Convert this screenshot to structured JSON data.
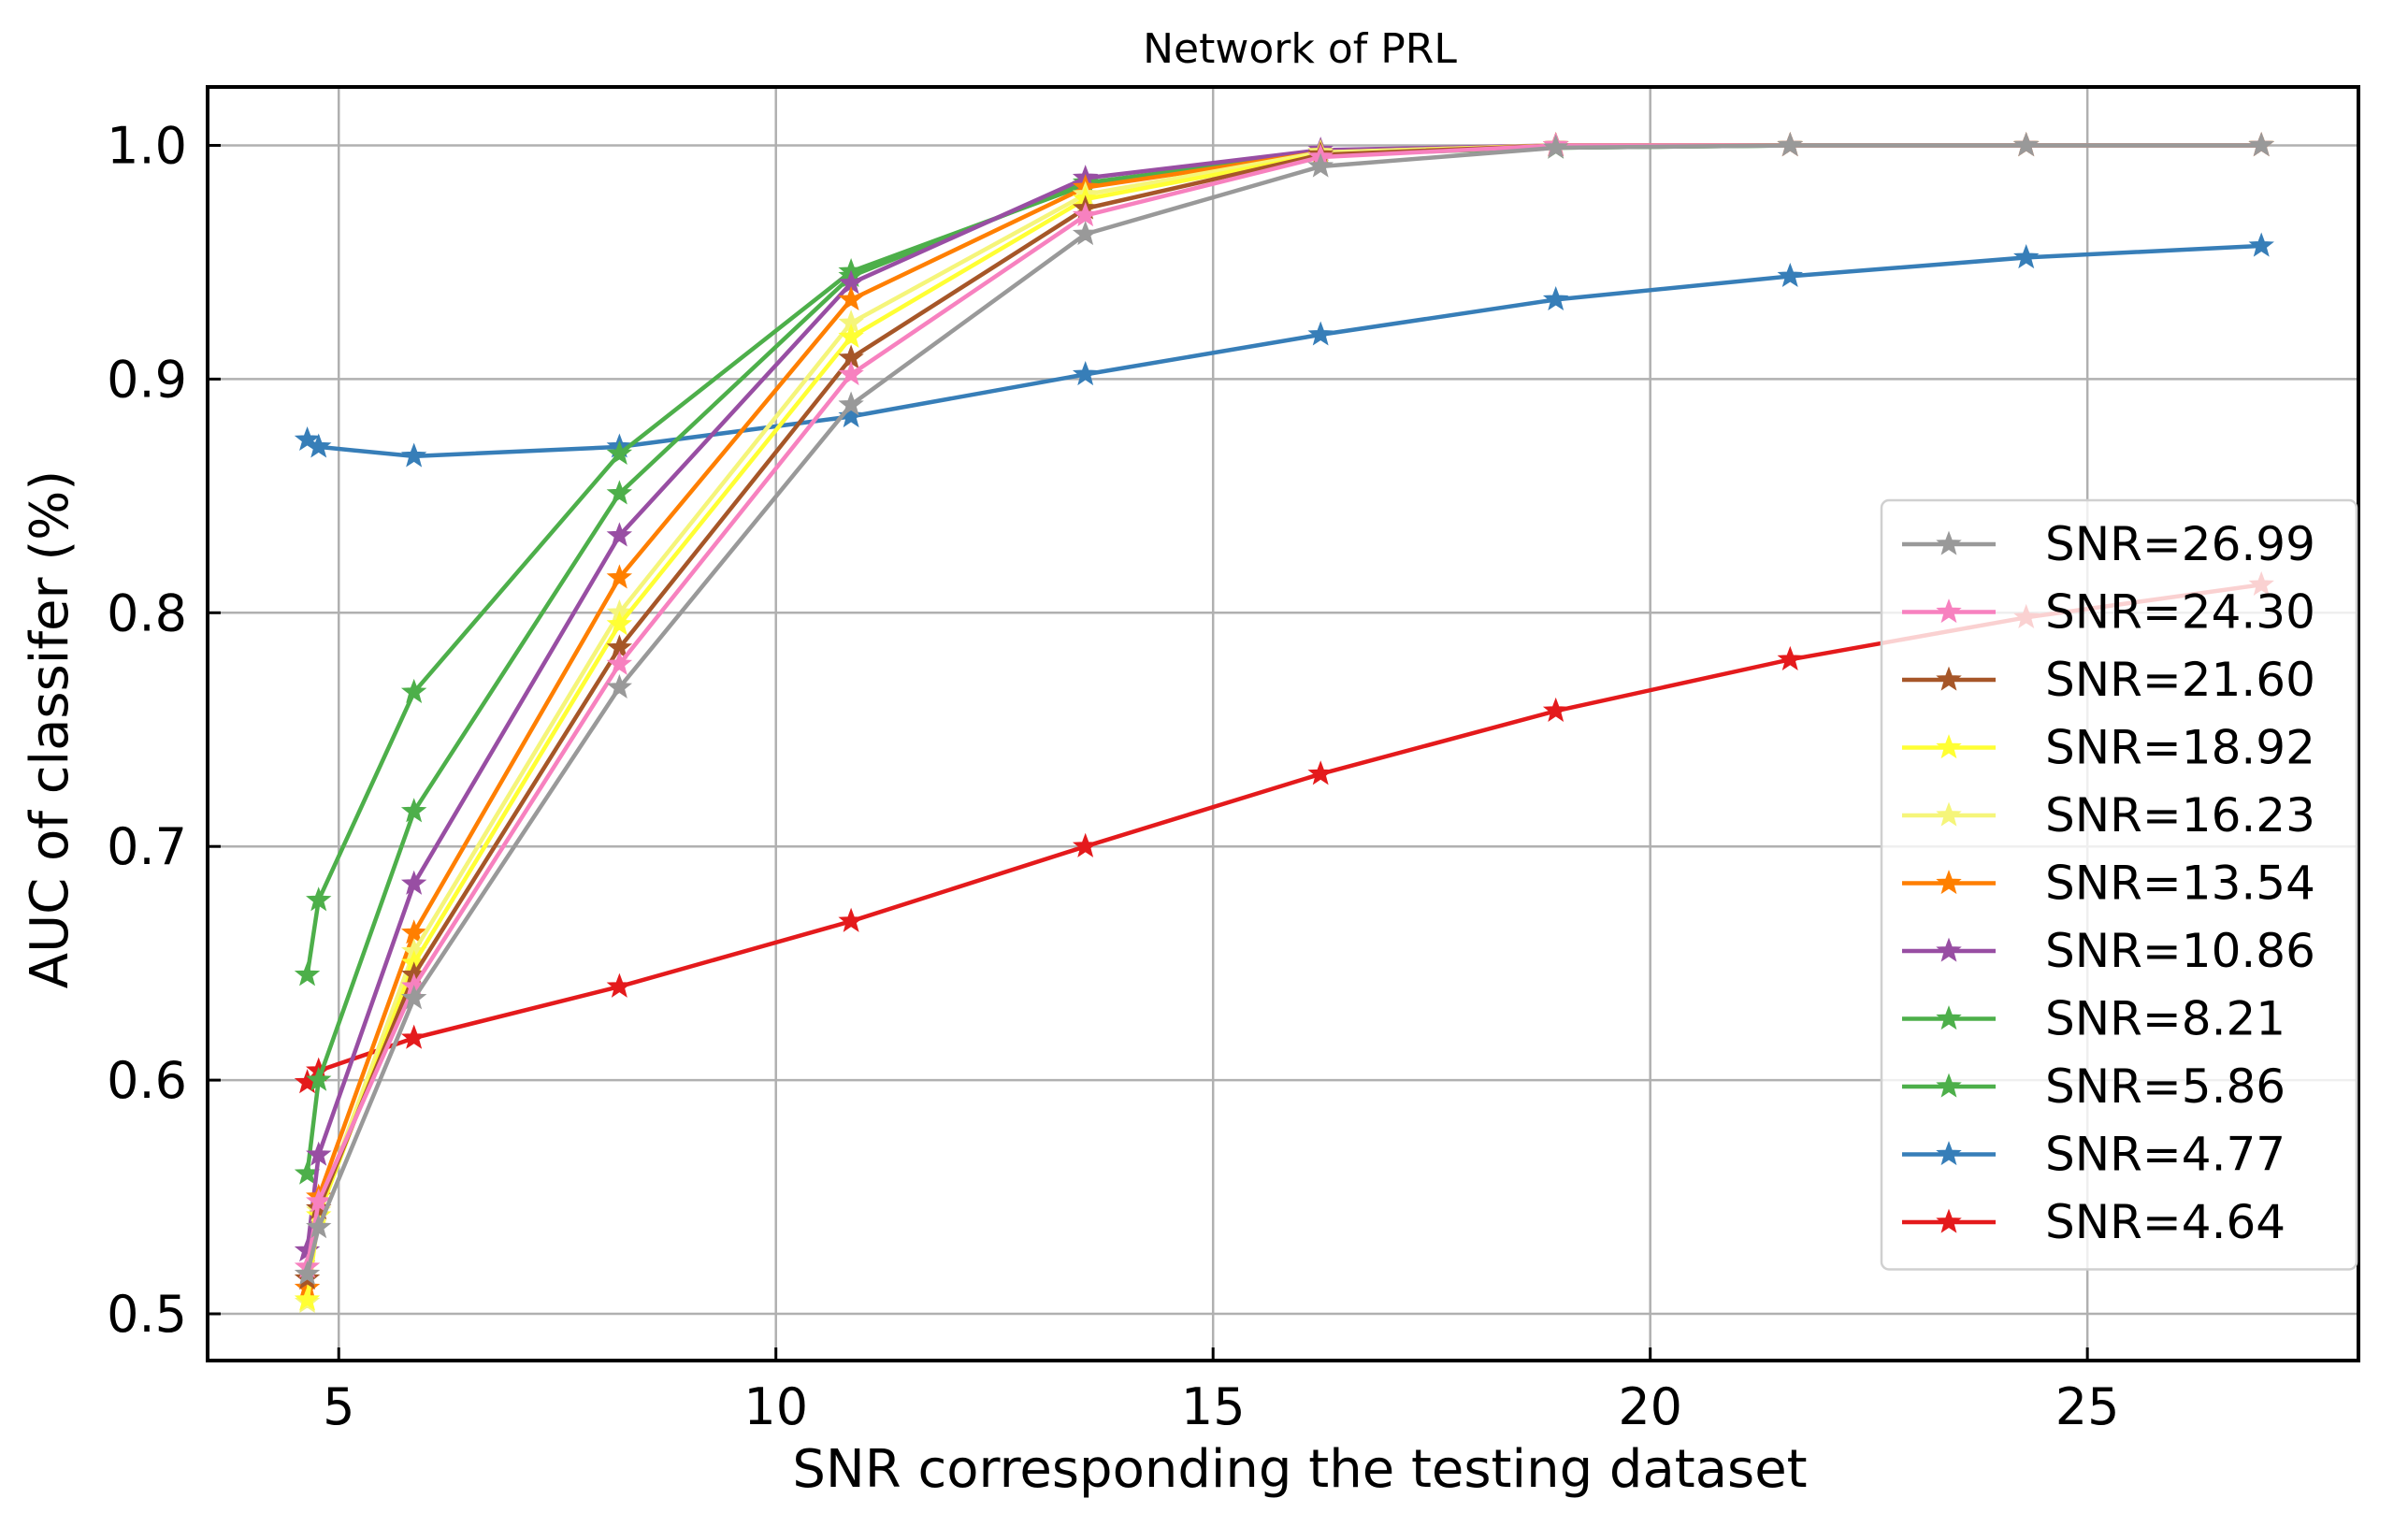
{
  "chart_data": {
    "type": "line",
    "title": "Network of PRL",
    "xlabel": "SNR corresponding the testing dataset",
    "ylabel": "AUC of classifer (%)",
    "xlim": [
      3.5,
      28.1
    ],
    "ylim": [
      0.48,
      1.025
    ],
    "xticks": [
      5,
      10,
      15,
      20,
      25
    ],
    "xtick_labels": [
      "5",
      "10",
      "15",
      "20",
      "25"
    ],
    "yticks": [
      0.5,
      0.6,
      0.7,
      0.8,
      0.9,
      1.0
    ],
    "ytick_labels": [
      "0.5",
      "0.6",
      "0.7",
      "0.8",
      "0.9",
      "1.0"
    ],
    "grid": true,
    "legend_position": "lower-right",
    "marker": "star",
    "x": [
      4.64,
      4.77,
      5.86,
      8.21,
      10.86,
      13.54,
      16.23,
      18.92,
      21.6,
      24.3,
      26.99
    ],
    "series": [
      {
        "name": "SNR=26.99",
        "color": "#999999",
        "values": [
          0.517,
          0.537,
          0.635,
          0.768,
          0.889,
          0.962,
          0.991,
          0.999,
          1.0,
          1.0,
          1.0
        ]
      },
      {
        "name": "SNR=24.30",
        "color": "#f781bf",
        "values": [
          0.52,
          0.548,
          0.64,
          0.778,
          0.902,
          0.97,
          0.995,
          1.0,
          1.0,
          1.0,
          1.0
        ]
      },
      {
        "name": "SNR=21.60",
        "color": "#a65628",
        "values": [
          0.515,
          0.545,
          0.645,
          0.785,
          0.909,
          0.973,
          0.996,
          1.0,
          1.0,
          1.0,
          1.0
        ]
      },
      {
        "name": "SNR=18.92",
        "color": "#ffff33",
        "values": [
          0.506,
          0.542,
          0.65,
          0.795,
          0.918,
          0.977,
          0.996,
          1.0,
          1.0,
          1.0,
          1.0
        ]
      },
      {
        "name": "SNR=16.23",
        "color": "#f5f57a",
        "values": [
          0.505,
          0.544,
          0.655,
          0.8,
          0.924,
          0.979,
          0.997,
          1.0,
          1.0,
          1.0,
          1.0
        ]
      },
      {
        "name": "SNR=13.54",
        "color": "#ff7f00",
        "values": [
          0.511,
          0.55,
          0.663,
          0.815,
          0.934,
          0.982,
          0.997,
          1.0,
          1.0,
          1.0,
          1.0
        ]
      },
      {
        "name": "SNR=10.86",
        "color": "#984ea3",
        "values": [
          0.527,
          0.568,
          0.684,
          0.833,
          0.941,
          0.986,
          0.998,
          1.0,
          1.0,
          1.0,
          1.0
        ]
      },
      {
        "name": "SNR=8.21",
        "color": "#4daf4a",
        "values": [
          0.56,
          0.6,
          0.715,
          0.851,
          0.944,
          0.984,
          0.997,
          0.999,
          1.0,
          1.0,
          1.0
        ]
      },
      {
        "name": "SNR=5.86",
        "color": "#4daf4a",
        "values": [
          0.645,
          0.677,
          0.766,
          0.868,
          0.946,
          0.983,
          0.996,
          0.999,
          1.0,
          1.0,
          1.0
        ]
      },
      {
        "name": "SNR=4.77",
        "color": "#377eb8",
        "values": [
          0.874,
          0.871,
          0.867,
          0.871,
          0.884,
          0.902,
          0.919,
          0.934,
          0.944,
          0.952,
          0.957
        ]
      },
      {
        "name": "SNR=4.64",
        "color": "#e41a1c",
        "values": [
          0.599,
          0.604,
          0.618,
          0.64,
          0.668,
          0.7,
          0.731,
          0.758,
          0.78,
          0.798,
          0.812
        ]
      }
    ]
  }
}
